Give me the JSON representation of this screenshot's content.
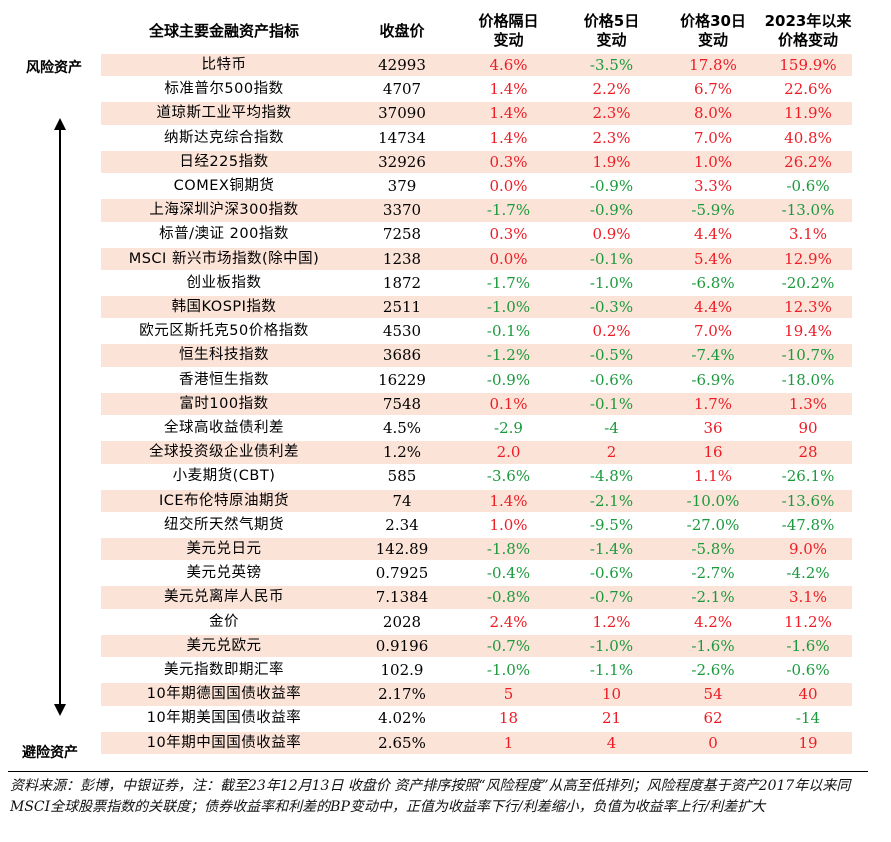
{
  "header": {
    "name": "全球主要金融资产指标",
    "close": "收盘价",
    "d1": "价格隔日\n变动",
    "d5": "价格5日\n变动",
    "d30": "价格30日\n变动",
    "ytd": "2023年以来\n价格变动"
  },
  "side_labels": {
    "top": "风险资产",
    "bottom": "避险资产"
  },
  "colors": {
    "positive": "#ee1c25",
    "negative": "#1a9a3c",
    "shade": "#fbe3d8"
  },
  "rows": [
    {
      "name": "比特币",
      "close": "42993",
      "d1": "4.6%",
      "d5": "-3.5%",
      "d30": "17.8%",
      "ytd": "159.9%"
    },
    {
      "name": "标准普尔500指数",
      "close": "4707",
      "d1": "1.4%",
      "d5": "2.2%",
      "d30": "6.7%",
      "ytd": "22.6%"
    },
    {
      "name": "道琼斯工业平均指数",
      "close": "37090",
      "d1": "1.4%",
      "d5": "2.3%",
      "d30": "8.0%",
      "ytd": "11.9%"
    },
    {
      "name": "纳斯达克综合指数",
      "close": "14734",
      "d1": "1.4%",
      "d5": "2.3%",
      "d30": "7.0%",
      "ytd": "40.8%"
    },
    {
      "name": "日经225指数",
      "close": "32926",
      "d1": "0.3%",
      "d5": "1.9%",
      "d30": "1.0%",
      "ytd": "26.2%"
    },
    {
      "name": "COMEX铜期货",
      "close": "379",
      "d1": "0.0%",
      "d5": "-0.9%",
      "d30": "3.3%",
      "ytd": "-0.6%"
    },
    {
      "name": "上海深圳沪深300指数",
      "close": "3370",
      "d1": "-1.7%",
      "d5": "-0.9%",
      "d30": "-5.9%",
      "ytd": "-13.0%"
    },
    {
      "name": "标普/澳证 200指数",
      "close": "7258",
      "d1": "0.3%",
      "d5": "0.9%",
      "d30": "4.4%",
      "ytd": "3.1%"
    },
    {
      "name": "MSCI 新兴市场指数(除中国)",
      "close": "1238",
      "d1": "0.0%",
      "d5": "-0.1%",
      "d30": "5.4%",
      "ytd": "12.9%"
    },
    {
      "name": "创业板指数",
      "close": "1872",
      "d1": "-1.7%",
      "d5": "-1.0%",
      "d30": "-6.8%",
      "ytd": "-20.2%"
    },
    {
      "name": "韩国KOSPI指数",
      "close": "2511",
      "d1": "-1.0%",
      "d5": "-0.3%",
      "d30": "4.4%",
      "ytd": "12.3%"
    },
    {
      "name": "欧元区斯托克50价格指数",
      "close": "4530",
      "d1": "-0.1%",
      "d5": "0.2%",
      "d30": "7.0%",
      "ytd": "19.4%"
    },
    {
      "name": "恒生科技指数",
      "close": "3686",
      "d1": "-1.2%",
      "d5": "-0.5%",
      "d30": "-7.4%",
      "ytd": "-10.7%"
    },
    {
      "name": "香港恒生指数",
      "close": "16229",
      "d1": "-0.9%",
      "d5": "-0.6%",
      "d30": "-6.9%",
      "ytd": "-18.0%"
    },
    {
      "name": "富时100指数",
      "close": "7548",
      "d1": "0.1%",
      "d5": "-0.1%",
      "d30": "1.7%",
      "ytd": "1.3%"
    },
    {
      "name": "全球高收益债利差",
      "close": "4.5%",
      "d1": "-2.9",
      "d5": "-4",
      "d30": "36",
      "ytd": "90"
    },
    {
      "name": "全球投资级企业债利差",
      "close": "1.2%",
      "d1": "2.0",
      "d5": "2",
      "d30": "16",
      "ytd": "28"
    },
    {
      "name": "小麦期货(CBT)",
      "close": "585",
      "d1": "-3.6%",
      "d5": "-4.8%",
      "d30": "1.1%",
      "ytd": "-26.1%"
    },
    {
      "name": "ICE布伦特原油期货",
      "close": "74",
      "d1": "1.4%",
      "d5": "-2.1%",
      "d30": "-10.0%",
      "ytd": "-13.6%"
    },
    {
      "name": "纽交所天然气期货",
      "close": "2.34",
      "d1": "1.0%",
      "d5": "-9.5%",
      "d30": "-27.0%",
      "ytd": "-47.8%"
    },
    {
      "name": "美元兑日元",
      "close": "142.89",
      "d1": "-1.8%",
      "d5": "-1.4%",
      "d30": "-5.8%",
      "ytd": "9.0%"
    },
    {
      "name": "美元兑英镑",
      "close": "0.7925",
      "d1": "-0.4%",
      "d5": "-0.6%",
      "d30": "-2.7%",
      "ytd": "-4.2%"
    },
    {
      "name": "美元兑离岸人民币",
      "close": "7.1384",
      "d1": "-0.8%",
      "d5": "-0.7%",
      "d30": "-2.1%",
      "ytd": "3.1%"
    },
    {
      "name": "金价",
      "close": "2028",
      "d1": "2.4%",
      "d5": "1.2%",
      "d30": "4.2%",
      "ytd": "11.2%"
    },
    {
      "name": "美元兑欧元",
      "close": "0.9196",
      "d1": "-0.7%",
      "d5": "-1.0%",
      "d30": "-1.6%",
      "ytd": "-1.6%"
    },
    {
      "name": "美元指数即期汇率",
      "close": "102.9",
      "d1": "-1.0%",
      "d5": "-1.1%",
      "d30": "-2.6%",
      "ytd": "-0.6%"
    },
    {
      "name": "10年期德国国债收益率",
      "close": "2.17%",
      "d1": "5",
      "d5": "10",
      "d30": "54",
      "ytd": "40"
    },
    {
      "name": "10年期美国国债收益率",
      "close": "4.02%",
      "d1": "18",
      "d5": "21",
      "d30": "62",
      "ytd": "-14"
    },
    {
      "name": "10年期中国国债收益率",
      "close": "2.65%",
      "d1": "1",
      "d5": "4",
      "d30": "0",
      "ytd": "19"
    }
  ],
  "footer": "资料来源：彭博，中银证券，注：截至23年12月13日 收盘价 资产排序按照“风险程度”从高至低排列；风险程度基于资产2017年以来同MSCI全球股票指数的关联度；债券收益率和利差的BP变动中，正值为收益率下行/利差缩小，负值为收益率上行/利差扩大"
}
